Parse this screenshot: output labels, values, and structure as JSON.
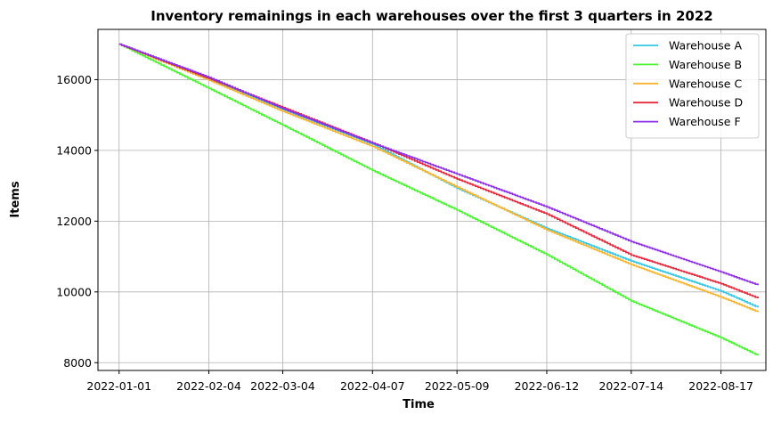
{
  "chart_data": {
    "type": "line",
    "title": "Inventory remainings in each warehouses over the first 3 quarters in 2022",
    "xlabel": "Time",
    "ylabel": "Items",
    "grid": true,
    "legend_position": "top-right",
    "x_range": [
      "2021-12-24",
      "2022-09-03"
    ],
    "ylim": [
      7780,
      17420
    ],
    "x_ticks": [
      "2022-01-01",
      "2022-02-04",
      "2022-03-04",
      "2022-04-07",
      "2022-05-09",
      "2022-06-12",
      "2022-07-14",
      "2022-08-17"
    ],
    "y_ticks": [
      8000,
      10000,
      12000,
      14000,
      16000
    ],
    "x": [
      "2022-01-01",
      "2022-02-04",
      "2022-03-04",
      "2022-04-07",
      "2022-05-09",
      "2022-06-12",
      "2022-07-14",
      "2022-08-17",
      "2022-08-31"
    ],
    "series": [
      {
        "name": "Warehouse A",
        "color": "#33c7e6",
        "values": [
          17000,
          16020,
          15150,
          14170,
          12930,
          11790,
          10870,
          10020,
          9560
        ]
      },
      {
        "name": "Warehouse B",
        "color": "#47f52e",
        "values": [
          17000,
          15750,
          14710,
          13430,
          12310,
          11050,
          9740,
          8700,
          8200
        ]
      },
      {
        "name": "Warehouse C",
        "color": "#f7b52e",
        "values": [
          17000,
          15980,
          15100,
          14110,
          12960,
          11750,
          10770,
          9850,
          9430
        ]
      },
      {
        "name": "Warehouse D",
        "color": "#e6283c",
        "values": [
          17000,
          16030,
          15210,
          14210,
          13190,
          12200,
          11040,
          10230,
          9820
        ]
      },
      {
        "name": "Warehouse F",
        "color": "#8e2ee6",
        "values": [
          17000,
          16060,
          15180,
          14200,
          13330,
          12400,
          11420,
          10560,
          10190
        ]
      }
    ]
  }
}
